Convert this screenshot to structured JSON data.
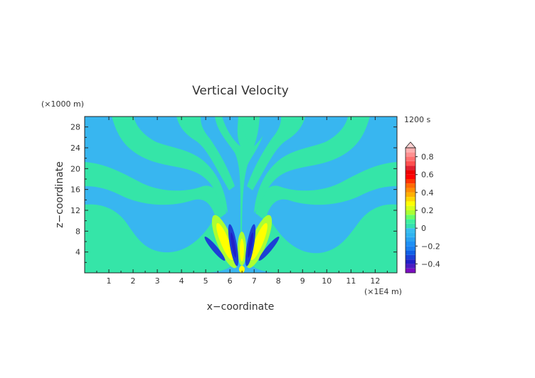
{
  "chart_data": {
    "type": "heatmap",
    "title": "Vertical Velocity",
    "time_label": "1200 s",
    "xlabel": "x−coordinate",
    "ylabel": "z−coordinate",
    "x_unit": "(×1E4 m)",
    "y_unit": "(×1000 m)",
    "xlim": [
      0,
      12.9
    ],
    "ylim": [
      0,
      30
    ],
    "x_ticks": [
      "1",
      "2",
      "3",
      "4",
      "5",
      "6",
      "7",
      "8",
      "9",
      "10",
      "11",
      "12"
    ],
    "y_ticks": [
      "4",
      "8",
      "12",
      "16",
      "20",
      "24",
      "28"
    ],
    "colorbar": {
      "levels": [
        -0.5,
        -0.45,
        -0.4,
        -0.35,
        -0.3,
        -0.25,
        -0.2,
        -0.15,
        -0.1,
        -0.05,
        0,
        0.05,
        0.1,
        0.15,
        0.2,
        0.25,
        0.3,
        0.35,
        0.4,
        0.45,
        0.5,
        0.55,
        0.6,
        0.65,
        0.7,
        0.75,
        0.8,
        0.85,
        0.9
      ],
      "colors": [
        "#7a0dc0",
        "#4b1cc2",
        "#2020c8",
        "#1c3fd6",
        "#0f5fe6",
        "#1a7ff0",
        "#1e90f5",
        "#2aa2f2",
        "#2fb4f0",
        "#38bdf0",
        "#35e0b0",
        "#3ef0a0",
        "#66ff66",
        "#aaff33",
        "#d8ff1a",
        "#ffff00",
        "#ffd700",
        "#ffb000",
        "#ff8c00",
        "#ff6a00",
        "#ff3300",
        "#ff0000",
        "#ee0000",
        "#e02030",
        "#ff5050",
        "#ff7070",
        "#ff9090",
        "#ffb0b0"
      ],
      "tick_labels": [
        "0.8",
        "0.6",
        "0.4",
        "0.2",
        "0",
        "−0.2",
        "−0.4"
      ]
    },
    "grid": false,
    "legend": "right (colorbar)"
  }
}
